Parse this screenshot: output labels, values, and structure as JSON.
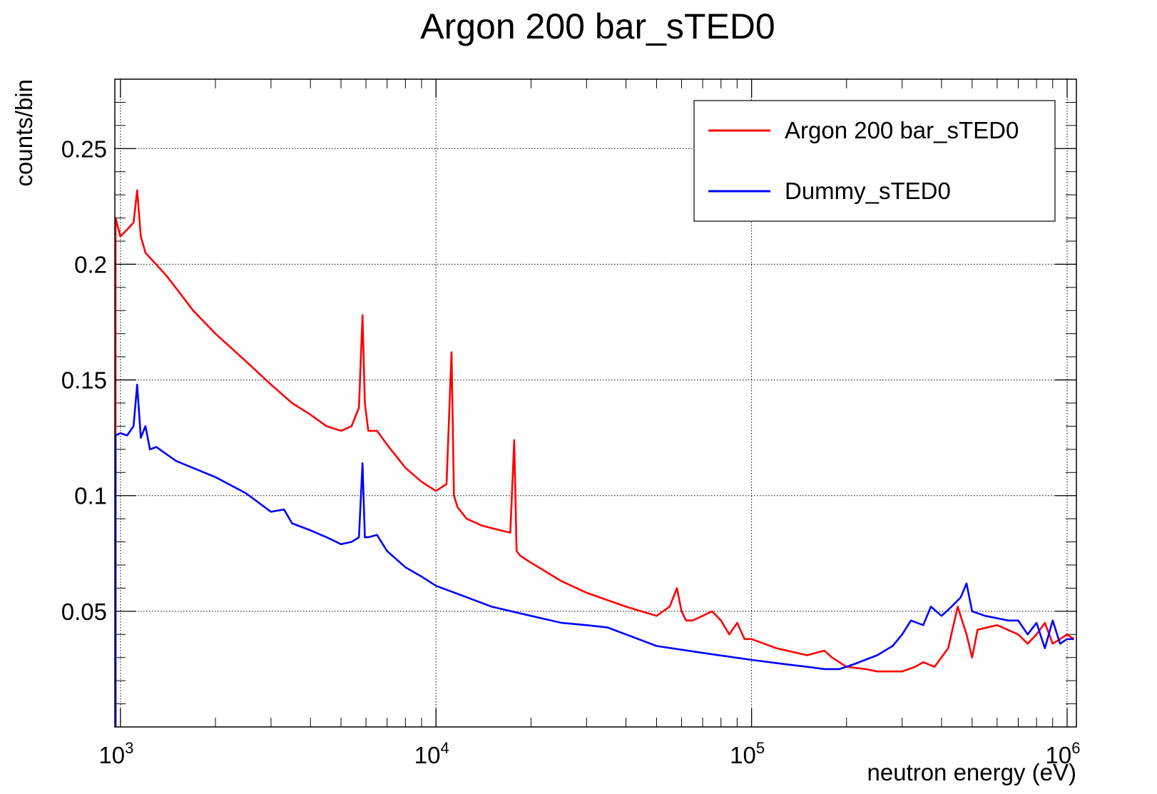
{
  "chart_data": {
    "type": "line",
    "title": "Argon 200 bar_sTED0",
    "xlabel": "neutron energy (eV)",
    "ylabel": "counts/bin",
    "x_scale": "log",
    "xlim": [
      960,
      1070000
    ],
    "ylim": [
      0,
      0.28
    ],
    "x_ticks": [
      {
        "value": 1000,
        "base": "10",
        "exp": "3"
      },
      {
        "value": 10000,
        "base": "10",
        "exp": "4"
      },
      {
        "value": 100000,
        "base": "10",
        "exp": "5"
      },
      {
        "value": 1000000,
        "base": "10",
        "exp": "6"
      }
    ],
    "y_ticks": [
      {
        "value": 0.05,
        "label": "0.05"
      },
      {
        "value": 0.1,
        "label": "0.1"
      },
      {
        "value": 0.15,
        "label": "0.15"
      },
      {
        "value": 0.2,
        "label": "0.2"
      },
      {
        "value": 0.25,
        "label": "0.25"
      }
    ],
    "grid": true,
    "legend_position": "top-right",
    "series": [
      {
        "name": "Argon 200 bar_sTED0",
        "color": "#ff0000",
        "x": [
          965,
          1000,
          1050,
          1100,
          1130,
          1160,
          1200,
          1400,
          1700,
          2000,
          2500,
          3000,
          3500,
          4000,
          4500,
          5000,
          5400,
          5700,
          5850,
          5950,
          6100,
          6500,
          7000,
          8000,
          9000,
          10000,
          10800,
          11200,
          11400,
          11700,
          12500,
          14000,
          16000,
          17200,
          17700,
          18000,
          18500,
          20000,
          25000,
          30000,
          40000,
          50000,
          55000,
          58000,
          60000,
          62000,
          65000,
          70000,
          75000,
          80000,
          85000,
          90000,
          95000,
          100000,
          120000,
          150000,
          170000,
          180000,
          200000,
          230000,
          250000,
          300000,
          330000,
          350000,
          380000,
          420000,
          450000,
          480000,
          500000,
          520000,
          600000,
          700000,
          750000,
          800000,
          850000,
          900000,
          950000,
          1000000,
          1050000
        ],
        "y": [
          0.22,
          0.212,
          0.215,
          0.218,
          0.232,
          0.212,
          0.205,
          0.195,
          0.18,
          0.17,
          0.158,
          0.148,
          0.14,
          0.135,
          0.13,
          0.128,
          0.13,
          0.138,
          0.178,
          0.14,
          0.128,
          0.128,
          0.122,
          0.112,
          0.106,
          0.102,
          0.105,
          0.162,
          0.1,
          0.095,
          0.09,
          0.087,
          0.085,
          0.084,
          0.124,
          0.076,
          0.074,
          0.071,
          0.063,
          0.058,
          0.052,
          0.048,
          0.052,
          0.06,
          0.05,
          0.046,
          0.046,
          0.048,
          0.05,
          0.046,
          0.04,
          0.045,
          0.038,
          0.038,
          0.034,
          0.031,
          0.033,
          0.03,
          0.026,
          0.025,
          0.024,
          0.024,
          0.026,
          0.028,
          0.026,
          0.034,
          0.052,
          0.04,
          0.03,
          0.042,
          0.044,
          0.04,
          0.036,
          0.04,
          0.045,
          0.036,
          0.038,
          0.04,
          0.038
        ]
      },
      {
        "name": "Dummy_sTED0",
        "color": "#0000ff",
        "x": [
          965,
          1000,
          1050,
          1100,
          1130,
          1160,
          1200,
          1240,
          1300,
          1500,
          2000,
          2500,
          3000,
          3300,
          3500,
          4000,
          4500,
          5000,
          5400,
          5700,
          5850,
          5950,
          6100,
          6500,
          7000,
          8000,
          9000,
          10000,
          12000,
          15000,
          20000,
          25000,
          30000,
          35000,
          40000,
          50000,
          70000,
          100000,
          130000,
          150000,
          170000,
          190000,
          210000,
          250000,
          280000,
          300000,
          320000,
          350000,
          370000,
          400000,
          430000,
          460000,
          480000,
          500000,
          550000,
          600000,
          650000,
          700000,
          750000,
          800000,
          850000,
          900000,
          950000,
          1000000,
          1050000
        ],
        "y": [
          0.126,
          0.127,
          0.126,
          0.13,
          0.148,
          0.125,
          0.13,
          0.12,
          0.121,
          0.115,
          0.108,
          0.101,
          0.093,
          0.094,
          0.088,
          0.085,
          0.082,
          0.079,
          0.08,
          0.082,
          0.114,
          0.082,
          0.082,
          0.083,
          0.076,
          0.069,
          0.065,
          0.061,
          0.057,
          0.052,
          0.048,
          0.045,
          0.044,
          0.043,
          0.04,
          0.035,
          0.032,
          0.029,
          0.027,
          0.026,
          0.025,
          0.025,
          0.027,
          0.031,
          0.035,
          0.04,
          0.046,
          0.044,
          0.052,
          0.048,
          0.052,
          0.056,
          0.062,
          0.05,
          0.048,
          0.047,
          0.046,
          0.046,
          0.04,
          0.045,
          0.034,
          0.046,
          0.036,
          0.038,
          0.038
        ]
      }
    ]
  }
}
